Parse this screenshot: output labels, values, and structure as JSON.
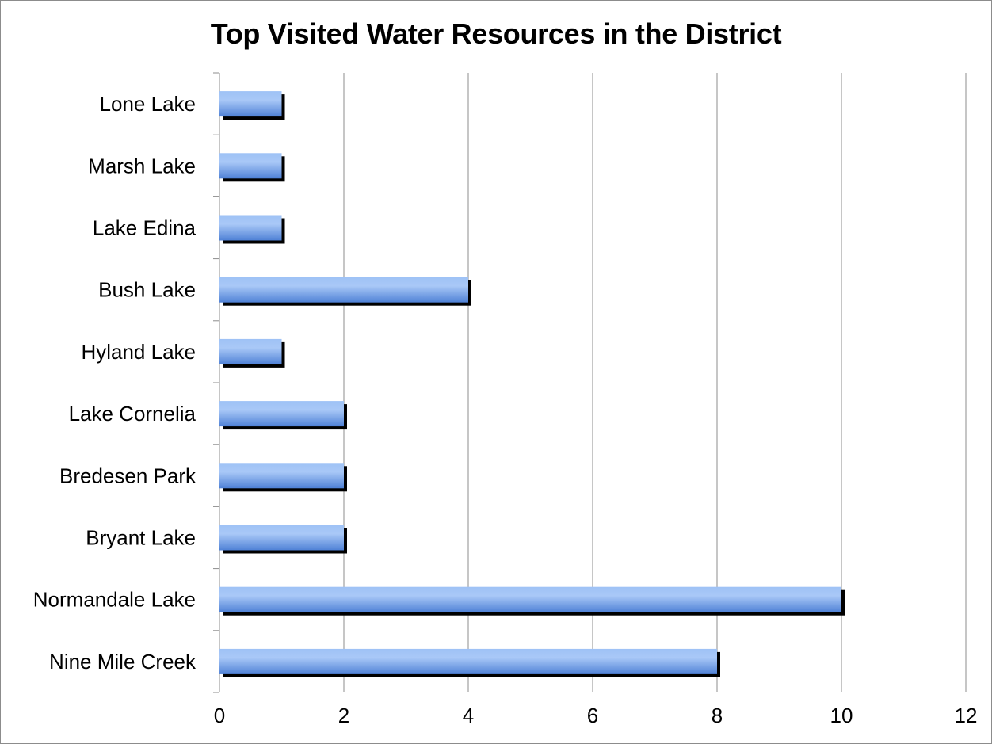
{
  "chart_data": {
    "type": "bar",
    "orientation": "horizontal",
    "title": "Top Visited Water Resources in the District",
    "xlabel": "",
    "ylabel": "",
    "categories": [
      "Nine Mile Creek",
      "Normandale Lake",
      "Bryant Lake",
      "Bredesen Park",
      "Lake Cornelia",
      "Hyland Lake",
      "Bush Lake",
      "Lake Edina",
      "Marsh Lake",
      "Lone Lake"
    ],
    "values": [
      8,
      10,
      2,
      2,
      2,
      1,
      4,
      1,
      1,
      1
    ],
    "xlim": [
      0,
      12
    ],
    "xticks": [
      "0",
      "2",
      "4",
      "6",
      "8",
      "10",
      "12"
    ],
    "grid": "vertical major gridlines",
    "legend": "none",
    "colors": {
      "bar_light": "#a9c8f7",
      "bar_dark": "#4f81d6",
      "shadow": "#000000",
      "grid": "#8c8c8c"
    }
  }
}
